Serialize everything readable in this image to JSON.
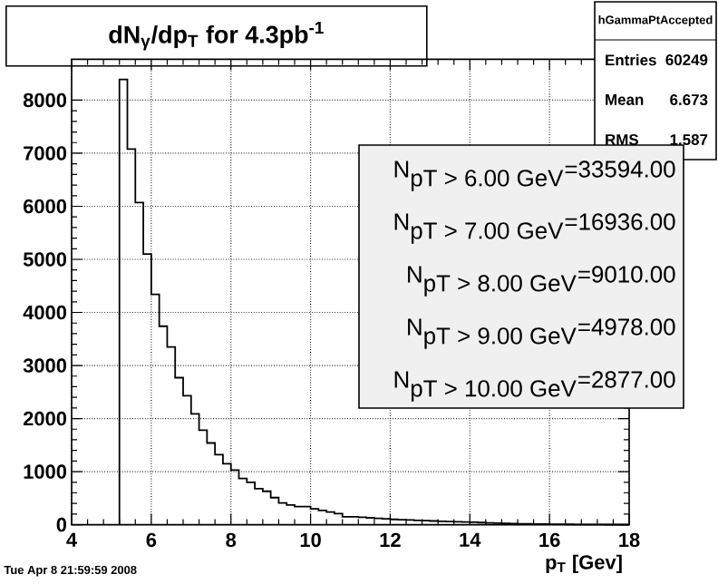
{
  "chart_data": {
    "type": "histogram",
    "title": "dN$_{γ}$/dp$_{T}$ for 4.3pb$^{-1}$",
    "xlabel": "p$_{T}$ [Gev]",
    "bins": [
      5.2,
      5.4,
      5.6,
      5.8,
      6.0,
      6.2,
      6.4,
      6.6,
      6.8,
      7.0,
      7.2,
      7.4,
      7.6,
      7.8,
      8.0,
      8.2,
      8.4,
      8.6,
      8.8,
      9.0,
      9.2,
      9.4,
      9.6,
      9.8,
      10.0,
      10.2,
      10.4,
      10.6,
      10.8,
      11.0,
      11.2,
      11.4,
      11.6,
      11.8,
      12.0,
      12.2,
      12.4,
      12.6,
      12.8,
      13.0,
      13.2,
      13.4,
      13.6,
      13.8,
      14.0,
      14.2,
      14.4,
      14.6,
      14.8,
      15.0,
      15.2,
      15.4,
      15.6,
      15.8,
      16.0,
      16.2,
      16.4,
      16.6,
      16.8,
      17.0,
      17.2,
      17.4,
      17.6,
      17.8,
      18.0
    ],
    "values": [
      8390,
      7080,
      6070,
      5100,
      4340,
      3740,
      3350,
      2770,
      2430,
      2090,
      1780,
      1540,
      1320,
      1150,
      1030,
      870,
      800,
      680,
      630,
      510,
      410,
      370,
      340,
      340,
      300,
      270,
      240,
      210,
      150,
      150,
      140,
      130,
      120,
      110,
      100,
      95,
      90,
      80,
      75,
      70,
      65,
      60,
      55,
      50,
      45,
      40,
      35,
      30,
      25,
      20,
      18,
      15,
      12,
      10,
      8,
      7,
      6,
      5,
      4,
      3,
      3,
      2,
      2,
      2
    ],
    "color": "#000000",
    "xlim": [
      4,
      18
    ],
    "ylim": [
      0,
      8770
    ],
    "xticks": [
      4,
      6,
      8,
      10,
      12,
      14,
      16,
      18
    ],
    "yticks": [
      0,
      1000,
      2000,
      3000,
      4000,
      5000,
      6000,
      7000,
      8000
    ],
    "grid": true,
    "annotations": [
      "hGammaPtAccepted",
      "Entries",
      "60249",
      "Mean",
      "6.673",
      "RMS",
      "1.587",
      "\\mbox{N}_{\\mbox{pT > 6.00 GeV}}\\mbox{=33594.00}",
      "\\mbox{N}_{\\mbox{pT > 7.00 GeV}}\\mbox{=16936.00}",
      "\\mbox{N}_{\\mbox{pT > 8.00 GeV}}\\mbox{=9010.00}",
      "\\mbox{N}_{\\mbox{pT > 9.00 GeV}}\\mbox{=4978.00}",
      "\\mbox{N}_{\\mbox{pT > 10.00 GeV}}\\mbox{=2877.00}",
      "Tue Apr  8 21:59:59 2008"
    ]
  }
}
